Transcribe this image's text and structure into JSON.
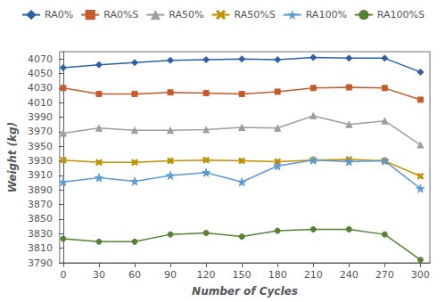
{
  "chart_data": {
    "type": "line",
    "xlabel": "Number of Cycles",
    "ylabel": "Weight (kg)",
    "x": [
      0,
      30,
      60,
      90,
      120,
      150,
      180,
      210,
      240,
      270,
      300
    ],
    "series": [
      {
        "name": "RA0%",
        "color": "#2d5fa6",
        "marker": "diamond",
        "values": [
          4058,
          4062,
          4065,
          4068,
          4069,
          4070,
          4069,
          4072,
          4071,
          4071,
          4052
        ]
      },
      {
        "name": "RA0%S",
        "color": "#c55a2a",
        "marker": "square",
        "values": [
          4030,
          4022,
          4022,
          4024,
          4023,
          4022,
          4025,
          4030,
          4031,
          4030,
          4014
        ]
      },
      {
        "name": "RA50%",
        "color": "#9e9e9e",
        "marker": "triangle",
        "values": [
          3968,
          3975,
          3972,
          3972,
          3973,
          3976,
          3975,
          3992,
          3980,
          3985,
          3952
        ]
      },
      {
        "name": "RA50%S",
        "color": "#bf9000",
        "marker": "x",
        "values": [
          3931,
          3928,
          3928,
          3930,
          3931,
          3930,
          3929,
          3931,
          3932,
          3930,
          3909
        ]
      },
      {
        "name": "RA100%",
        "color": "#5b9bd5",
        "marker": "star",
        "values": [
          3901,
          3907,
          3902,
          3910,
          3914,
          3901,
          3923,
          3931,
          3929,
          3930,
          3892
        ]
      },
      {
        "name": "RA100%S",
        "color": "#548235",
        "marker": "circle",
        "values": [
          3823,
          3819,
          3819,
          3829,
          3831,
          3826,
          3834,
          3836,
          3836,
          3829,
          3794
        ]
      }
    ],
    "xlim": [
      -3,
      308
    ],
    "ylim": [
      3790,
      4080
    ],
    "xticks": [
      0,
      30,
      60,
      90,
      120,
      150,
      180,
      210,
      240,
      270,
      300
    ],
    "yticks": [
      3790,
      3810,
      3830,
      3850,
      3870,
      3890,
      3910,
      3930,
      3950,
      3970,
      3990,
      4010,
      4030,
      4050,
      4070
    ],
    "grid": false,
    "legend": "top"
  }
}
